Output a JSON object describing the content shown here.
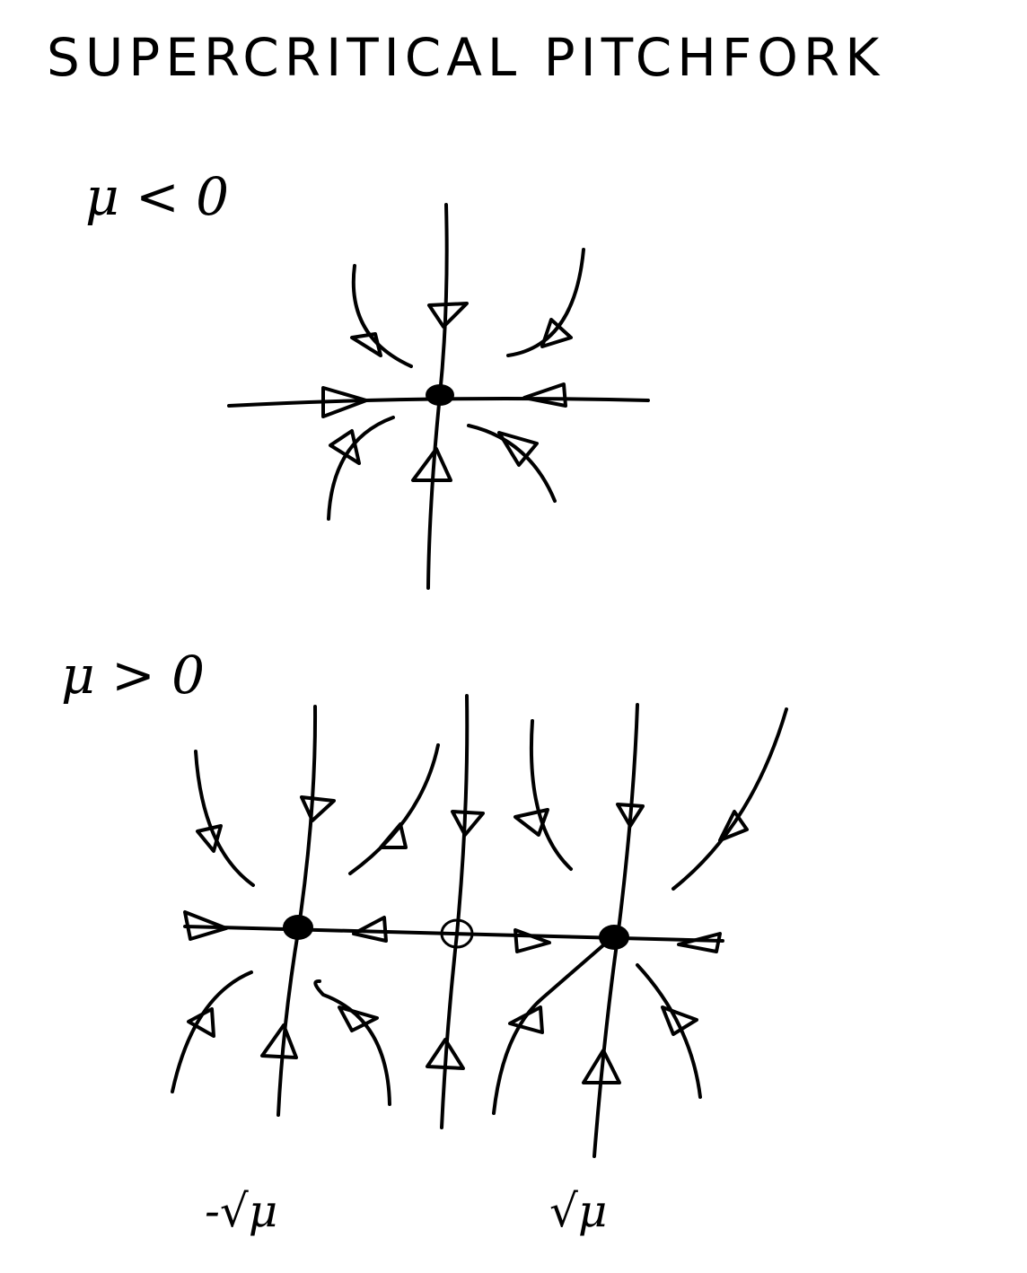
{
  "title": "SUPERCRITICAL PITCHFORK",
  "panels": [
    {
      "condition": "μ < 0"
    },
    {
      "condition": "μ > 0",
      "fixed_point_labels": {
        "left": "-√μ",
        "right": "√μ"
      }
    }
  ],
  "ink_color": "#000000",
  "background": "#ffffff"
}
